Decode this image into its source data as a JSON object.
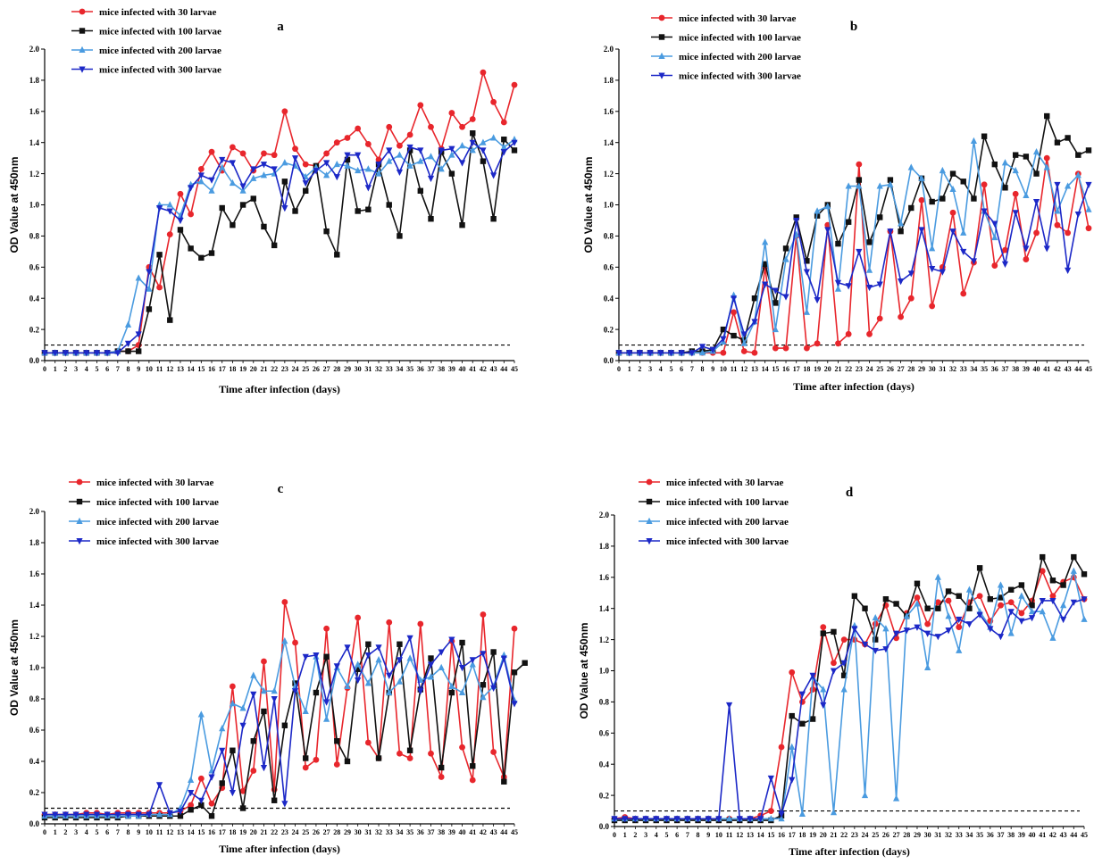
{
  "figure": {
    "panels": [
      "a",
      "b",
      "c",
      "d"
    ]
  },
  "chart_data": [
    {
      "panel": "a",
      "type": "line",
      "xlabel": "Time after infection (days)",
      "ylabel": "OD Value at 450nm",
      "xlim": [
        0,
        45
      ],
      "ylim": [
        0,
        2.0
      ],
      "yticks": [
        0.0,
        0.2,
        0.4,
        0.6,
        0.8,
        1.0,
        1.2,
        1.4,
        1.6,
        1.8,
        2.0
      ],
      "threshold": 0.1,
      "legend_position": "top-left",
      "series": [
        {
          "name": "mice infected with 30 larvae",
          "color": "#e8262c",
          "marker": "circle",
          "values": [
            0.05,
            0.05,
            0.05,
            0.05,
            0.05,
            0.05,
            0.05,
            0.06,
            0.06,
            0.1,
            0.6,
            0.47,
            0.81,
            1.07,
            0.94,
            1.23,
            1.34,
            1.22,
            1.37,
            1.33,
            1.22,
            1.33,
            1.32,
            1.6,
            1.36,
            1.26,
            1.25,
            1.33,
            1.4,
            1.43,
            1.49,
            1.39,
            1.29,
            1.5,
            1.38,
            1.45,
            1.64,
            1.5,
            1.36,
            1.59,
            1.5,
            1.55,
            1.85,
            1.66,
            1.53,
            1.77
          ]
        },
        {
          "name": "mice infected with 100 larvae",
          "color": "#111111",
          "marker": "square",
          "values": [
            0.05,
            0.05,
            0.05,
            0.05,
            0.05,
            0.05,
            0.05,
            0.06,
            0.06,
            0.06,
            0.33,
            0.68,
            0.26,
            0.84,
            0.72,
            0.66,
            0.69,
            0.98,
            0.87,
            1.0,
            1.04,
            0.86,
            0.74,
            1.15,
            0.96,
            1.09,
            1.25,
            0.83,
            0.68,
            1.29,
            0.96,
            0.97,
            1.26,
            1.0,
            0.8,
            1.35,
            1.09,
            0.91,
            1.34,
            1.2,
            0.87,
            1.46,
            1.28,
            0.91,
            1.42,
            1.35
          ]
        },
        {
          "name": "mice infected with 200 larvae",
          "color": "#4a9be0",
          "marker": "triangle-up",
          "values": [
            0.05,
            0.05,
            0.05,
            0.05,
            0.05,
            0.05,
            0.05,
            0.06,
            0.23,
            0.53,
            0.46,
            1.0,
            1.0,
            0.93,
            1.13,
            1.15,
            1.09,
            1.24,
            1.14,
            1.09,
            1.17,
            1.19,
            1.2,
            1.27,
            1.25,
            1.18,
            1.24,
            1.19,
            1.26,
            1.25,
            1.22,
            1.23,
            1.2,
            1.28,
            1.32,
            1.25,
            1.28,
            1.31,
            1.23,
            1.32,
            1.38,
            1.35,
            1.4,
            1.43,
            1.37,
            1.42
          ]
        },
        {
          "name": "mice infected with 300 larvae",
          "color": "#1c28c7",
          "marker": "triangle-down",
          "values": [
            0.05,
            0.05,
            0.05,
            0.05,
            0.05,
            0.05,
            0.05,
            0.05,
            0.11,
            0.17,
            0.57,
            0.98,
            0.96,
            0.9,
            1.11,
            1.19,
            1.16,
            1.29,
            1.27,
            1.12,
            1.23,
            1.26,
            1.23,
            0.98,
            1.3,
            1.14,
            1.22,
            1.27,
            1.18,
            1.32,
            1.32,
            1.11,
            1.26,
            1.35,
            1.21,
            1.37,
            1.35,
            1.17,
            1.35,
            1.36,
            1.27,
            1.4,
            1.35,
            1.19,
            1.34,
            1.4
          ]
        }
      ]
    },
    {
      "panel": "b",
      "type": "line",
      "xlabel": "Time after infection (days)",
      "ylabel": "OD Value at 450nm",
      "xlim": [
        0,
        45
      ],
      "ylim": [
        0,
        2.0
      ],
      "yticks": [
        0.0,
        0.2,
        0.4,
        0.6,
        0.8,
        1.0,
        1.2,
        1.4,
        1.6,
        1.8,
        2.0
      ],
      "threshold": 0.1,
      "legend_position": "top-left",
      "series": [
        {
          "name": "mice infected with 30 larvae",
          "color": "#e8262c",
          "marker": "circle",
          "values": [
            0.05,
            0.05,
            0.05,
            0.05,
            0.05,
            0.05,
            0.05,
            0.05,
            0.05,
            0.05,
            0.05,
            0.31,
            0.06,
            0.05,
            0.6,
            0.08,
            0.08,
            0.8,
            0.08,
            0.11,
            0.87,
            0.11,
            0.17,
            1.26,
            0.17,
            0.27,
            0.83,
            0.28,
            0.4,
            1.03,
            0.35,
            0.6,
            0.95,
            0.43,
            0.63,
            1.13,
            0.61,
            0.71,
            1.07,
            0.65,
            0.82,
            1.3,
            0.87,
            0.82,
            1.2,
            0.85
          ]
        },
        {
          "name": "mice infected with 100 larvae",
          "color": "#111111",
          "marker": "square",
          "values": [
            0.05,
            0.05,
            0.05,
            0.05,
            0.05,
            0.05,
            0.05,
            0.06,
            0.06,
            0.07,
            0.2,
            0.16,
            0.13,
            0.4,
            0.62,
            0.37,
            0.72,
            0.92,
            0.64,
            0.93,
            1.0,
            0.75,
            0.89,
            1.16,
            0.76,
            0.92,
            1.16,
            0.83,
            0.98,
            1.17,
            1.02,
            1.04,
            1.2,
            1.15,
            1.04,
            1.44,
            1.26,
            1.11,
            1.32,
            1.31,
            1.2,
            1.57,
            1.4,
            1.43,
            1.32,
            1.35
          ]
        },
        {
          "name": "mice infected with 200 larvae",
          "color": "#4a9be0",
          "marker": "triangle-up",
          "values": [
            0.05,
            0.05,
            0.05,
            0.05,
            0.05,
            0.05,
            0.05,
            0.05,
            0.05,
            0.06,
            0.12,
            0.42,
            0.11,
            0.25,
            0.76,
            0.2,
            0.65,
            0.81,
            0.31,
            0.96,
            0.99,
            0.46,
            1.12,
            1.12,
            0.58,
            1.12,
            1.13,
            0.88,
            1.24,
            1.17,
            0.72,
            1.22,
            1.1,
            0.82,
            1.41,
            0.96,
            0.79,
            1.27,
            1.22,
            1.06,
            1.34,
            1.24,
            0.96,
            1.12,
            1.19,
            0.97
          ]
        },
        {
          "name": "mice infected with 300 larvae",
          "color": "#1c28c7",
          "marker": "triangle-down",
          "values": [
            0.05,
            0.05,
            0.05,
            0.05,
            0.05,
            0.05,
            0.05,
            0.05,
            0.09,
            0.07,
            0.14,
            0.4,
            0.17,
            0.25,
            0.49,
            0.45,
            0.41,
            0.9,
            0.57,
            0.39,
            0.84,
            0.5,
            0.48,
            0.7,
            0.47,
            0.49,
            0.83,
            0.51,
            0.56,
            0.84,
            0.59,
            0.57,
            0.83,
            0.7,
            0.64,
            0.96,
            0.88,
            0.62,
            0.95,
            0.72,
            1.02,
            0.72,
            1.13,
            0.58,
            0.94,
            1.13
          ]
        }
      ]
    },
    {
      "panel": "c",
      "type": "line",
      "xlabel": "Time after infection (days)",
      "ylabel": "OD Value at 450nm",
      "xlim": [
        0,
        45
      ],
      "ylim": [
        0,
        2.0
      ],
      "yticks": [
        0.0,
        0.2,
        0.4,
        0.6,
        0.8,
        1.0,
        1.2,
        1.4,
        1.6,
        1.8,
        2.0
      ],
      "threshold": 0.1,
      "legend_position": "top-left",
      "series": [
        {
          "name": "mice infected with 30 larvae",
          "color": "#e8262c",
          "marker": "circle",
          "values": [
            0.06,
            0.06,
            0.06,
            0.06,
            0.07,
            0.07,
            0.06,
            0.07,
            0.07,
            0.07,
            0.07,
            0.07,
            0.07,
            0.08,
            0.12,
            0.29,
            0.13,
            0.23,
            0.88,
            0.21,
            0.34,
            1.04,
            0.22,
            1.42,
            1.16,
            0.36,
            0.41,
            1.25,
            0.38,
            0.87,
            1.32,
            0.52,
            0.42,
            1.29,
            0.45,
            0.42,
            1.28,
            0.45,
            0.3,
            1.17,
            0.49,
            0.28,
            1.34,
            0.46,
            0.3,
            1.25
          ]
        },
        {
          "name": "mice infected with 100 larvae",
          "color": "#111111",
          "marker": "square",
          "values": [
            0.04,
            0.04,
            0.04,
            0.04,
            0.04,
            0.04,
            0.04,
            0.04,
            0.05,
            0.05,
            0.05,
            0.05,
            0.05,
            0.05,
            0.09,
            0.12,
            0.05,
            0.26,
            0.47,
            0.1,
            0.53,
            0.72,
            0.15,
            0.63,
            0.9,
            0.42,
            0.84,
            1.07,
            0.53,
            0.4,
            0.99,
            1.15,
            0.42,
            0.84,
            1.15,
            0.47,
            0.86,
            1.06,
            0.36,
            0.84,
            1.16,
            0.37,
            0.89,
            1.1,
            0.27,
            0.97,
            1.03
          ]
        },
        {
          "name": "mice infected with 200 larvae",
          "color": "#4a9be0",
          "marker": "triangle-up",
          "values": [
            0.05,
            0.05,
            0.05,
            0.05,
            0.05,
            0.05,
            0.05,
            0.05,
            0.05,
            0.05,
            0.06,
            0.06,
            0.06,
            0.1,
            0.28,
            0.7,
            0.34,
            0.61,
            0.77,
            0.74,
            0.95,
            0.85,
            0.85,
            1.17,
            0.88,
            0.72,
            1.07,
            0.67,
            1.0,
            0.88,
            1.02,
            0.9,
            1.05,
            0.84,
            0.91,
            1.06,
            0.92,
            0.94,
            1.0,
            0.88,
            0.84,
            1.02,
            0.81,
            0.88,
            1.08,
            0.79
          ]
        },
        {
          "name": "mice infected with 300 larvae",
          "color": "#1c28c7",
          "marker": "triangle-down",
          "values": [
            0.06,
            0.06,
            0.06,
            0.06,
            0.06,
            0.06,
            0.06,
            0.06,
            0.06,
            0.06,
            0.06,
            0.25,
            0.07,
            0.08,
            0.2,
            0.15,
            0.3,
            0.47,
            0.2,
            0.63,
            0.83,
            0.36,
            0.8,
            0.13,
            0.85,
            1.07,
            1.08,
            0.78,
            1.01,
            1.13,
            0.92,
            1.08,
            1.13,
            0.95,
            1.05,
            1.19,
            0.85,
            1.02,
            1.1,
            1.18,
            1.0,
            1.05,
            1.09,
            0.87,
            1.06,
            0.77
          ]
        }
      ]
    },
    {
      "panel": "d",
      "type": "line",
      "xlabel": "Time after infection (days)",
      "ylabel": "OD Value at 450nm",
      "xlim": [
        0,
        45
      ],
      "ylim": [
        0,
        2.0
      ],
      "yticks": [
        0.0,
        0.2,
        0.4,
        0.6,
        0.8,
        1.0,
        1.2,
        1.4,
        1.6,
        1.8,
        2.0
      ],
      "threshold": 0.1,
      "legend_position": "top-left",
      "series": [
        {
          "name": "mice infected with 30 larvae",
          "color": "#e8262c",
          "marker": "circle",
          "values": [
            0.05,
            0.06,
            0.05,
            0.05,
            0.05,
            0.05,
            0.05,
            0.05,
            0.05,
            0.05,
            0.05,
            0.05,
            0.05,
            0.05,
            0.07,
            0.1,
            0.51,
            0.99,
            0.8,
            0.88,
            1.28,
            1.05,
            1.2,
            1.2,
            1.17,
            1.3,
            1.42,
            1.21,
            1.37,
            1.47,
            1.3,
            1.44,
            1.45,
            1.28,
            1.44,
            1.48,
            1.32,
            1.42,
            1.44,
            1.37,
            1.45,
            1.64,
            1.48,
            1.57,
            1.6,
            1.46
          ]
        },
        {
          "name": "mice infected with 100 larvae",
          "color": "#111111",
          "marker": "square",
          "values": [
            0.04,
            0.04,
            0.04,
            0.04,
            0.04,
            0.04,
            0.04,
            0.04,
            0.04,
            0.04,
            0.04,
            0.04,
            0.04,
            0.04,
            0.04,
            0.04,
            0.07,
            0.71,
            0.66,
            0.69,
            1.24,
            1.25,
            0.97,
            1.48,
            1.4,
            1.2,
            1.46,
            1.43,
            1.35,
            1.56,
            1.4,
            1.4,
            1.51,
            1.48,
            1.4,
            1.66,
            1.46,
            1.47,
            1.52,
            1.55,
            1.42,
            1.73,
            1.58,
            1.55,
            1.73,
            1.62
          ]
        },
        {
          "name": "mice infected with 200 larvae",
          "color": "#4a9be0",
          "marker": "triangle-up",
          "values": [
            0.05,
            0.05,
            0.05,
            0.05,
            0.05,
            0.05,
            0.05,
            0.05,
            0.05,
            0.05,
            0.05,
            0.05,
            0.05,
            0.05,
            0.05,
            0.05,
            0.05,
            0.51,
            0.08,
            0.96,
            0.88,
            0.09,
            0.88,
            1.29,
            0.2,
            1.34,
            1.27,
            0.18,
            1.35,
            1.43,
            1.02,
            1.6,
            1.35,
            1.13,
            1.52,
            1.38,
            1.28,
            1.55,
            1.24,
            1.48,
            1.38,
            1.38,
            1.21,
            1.42,
            1.64,
            1.33
          ]
        },
        {
          "name": "mice infected with 300 larvae",
          "color": "#1c28c7",
          "marker": "triangle-down",
          "values": [
            0.05,
            0.05,
            0.05,
            0.05,
            0.05,
            0.05,
            0.05,
            0.05,
            0.05,
            0.05,
            0.05,
            0.78,
            0.05,
            0.05,
            0.05,
            0.31,
            0.08,
            0.3,
            0.85,
            0.97,
            0.78,
            1.0,
            1.05,
            1.27,
            1.17,
            1.13,
            1.14,
            1.24,
            1.26,
            1.28,
            1.24,
            1.22,
            1.26,
            1.33,
            1.3,
            1.36,
            1.27,
            1.22,
            1.38,
            1.32,
            1.34,
            1.45,
            1.45,
            1.33,
            1.44,
            1.46
          ]
        }
      ]
    }
  ]
}
